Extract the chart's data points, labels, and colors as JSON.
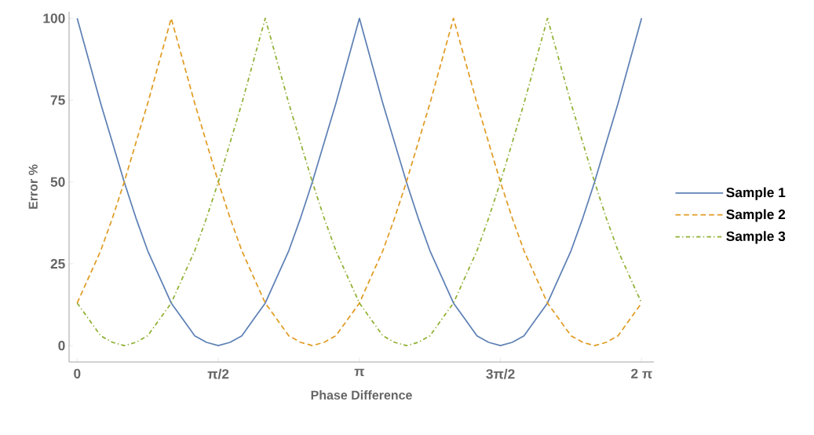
{
  "chart_data": {
    "type": "line",
    "xlabel": "Phase Difference",
    "ylabel": "Error %",
    "x": [
      0,
      0.131,
      0.262,
      0.393,
      0.524,
      0.654,
      0.785,
      0.916,
      1.047,
      1.178,
      1.309,
      1.44,
      1.571,
      1.702,
      1.833,
      1.963,
      2.094,
      2.225,
      2.356,
      2.487,
      2.618,
      2.749,
      2.88,
      3.011,
      3.142,
      3.272,
      3.403,
      3.534,
      3.665,
      3.796,
      3.927,
      4.058,
      4.189,
      4.32,
      4.451,
      4.581,
      4.712,
      4.843,
      4.974,
      5.105,
      5.236,
      5.367,
      5.498,
      5.629,
      5.76,
      5.89,
      6.021,
      6.152,
      6.283
    ],
    "series": [
      {
        "name": "Sample 1",
        "color": "#5e81b5",
        "line_style": "solid",
        "values": [
          100,
          87,
          74,
          62,
          50,
          39,
          29,
          21,
          13,
          8,
          3,
          1,
          0,
          1,
          3,
          8,
          13,
          21,
          29,
          39,
          50,
          62,
          74,
          87,
          100,
          87,
          74,
          62,
          50,
          39,
          29,
          21,
          13,
          8,
          3,
          1,
          0,
          1,
          3,
          8,
          13,
          21,
          29,
          39,
          50,
          62,
          74,
          87,
          100
        ]
      },
      {
        "name": "Sample 2",
        "color": "#e19c24",
        "line_style": "dashed",
        "values": [
          13,
          21,
          29,
          39,
          50,
          62,
          74,
          87,
          100,
          87,
          74,
          62,
          50,
          39,
          29,
          21,
          13,
          8,
          3,
          1,
          0,
          1,
          3,
          8,
          13,
          21,
          29,
          39,
          50,
          62,
          74,
          87,
          100,
          87,
          74,
          62,
          50,
          39,
          29,
          21,
          13,
          8,
          3,
          1,
          0,
          1,
          3,
          8,
          13
        ]
      },
      {
        "name": "Sample 3",
        "color": "#8fb032",
        "line_style": "dashdot",
        "values": [
          13,
          8,
          3,
          1,
          0,
          1,
          3,
          8,
          13,
          21,
          29,
          39,
          50,
          62,
          74,
          87,
          100,
          87,
          74,
          62,
          50,
          39,
          29,
          21,
          13,
          8,
          3,
          1,
          0,
          1,
          3,
          8,
          13,
          21,
          29,
          39,
          50,
          62,
          74,
          87,
          100,
          87,
          74,
          62,
          50,
          39,
          29,
          21,
          13
        ]
      }
    ],
    "xlim": [
      -0.09,
      6.42
    ],
    "ylim": [
      -5,
      102
    ],
    "xticks": [
      {
        "value": 0,
        "label": "0"
      },
      {
        "value": 1.571,
        "label": "π/2"
      },
      {
        "value": 3.142,
        "label": "π"
      },
      {
        "value": 4.712,
        "label": "3π/2"
      },
      {
        "value": 6.283,
        "label": "2 π"
      }
    ],
    "yticks": [
      0,
      25,
      50,
      75,
      100
    ],
    "legend": "right",
    "grid": false,
    "marker": "none"
  }
}
